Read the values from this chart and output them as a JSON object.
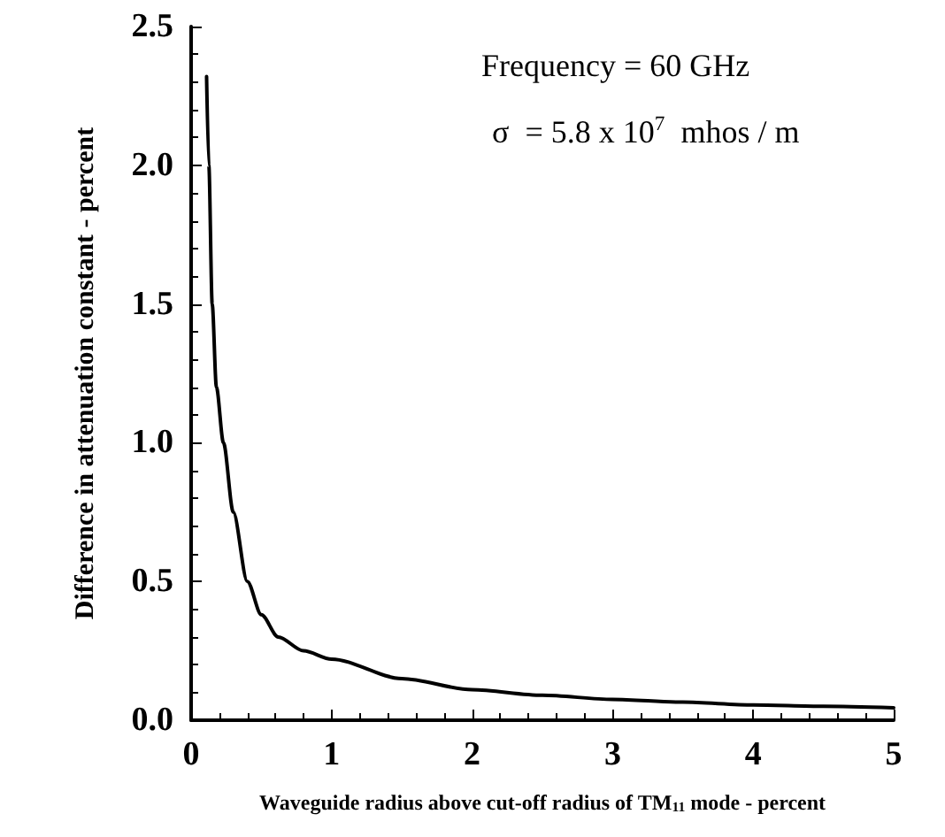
{
  "chart_data": {
    "type": "line",
    "xlabel": "Waveguide radius above cut-off radius of TM$_{11}$ mode - percent",
    "ylabel": "Difference in attenuation constant - percent",
    "annotations": [
      "Frequency = 60 GHz",
      "σ  = 5.8 x 10$^{7}$  mhos / m"
    ],
    "series": [
      {
        "color": "#000000",
        "x": [
          0.11,
          0.126,
          0.15,
          0.18,
          0.23,
          0.3,
          0.4,
          0.5,
          0.62,
          0.8,
          1,
          1.5,
          2,
          2.5,
          3,
          3.5,
          4,
          4.5,
          5
        ],
        "values": [
          2.32,
          2.0,
          1.5,
          1.2,
          1.0,
          0.75,
          0.5,
          0.38,
          0.3,
          0.25,
          0.22,
          0.15,
          0.11,
          0.09,
          0.075,
          0.065,
          0.055,
          0.05,
          0.045
        ]
      }
    ],
    "xlim": [
      0,
      5
    ],
    "xticks": [
      0,
      1,
      2,
      3,
      4,
      5
    ],
    "ylim": [
      0,
      2.5
    ],
    "yticks": [
      {
        "value": 0,
        "label": "0.0"
      },
      {
        "value": 0.5,
        "label": "0.5"
      },
      {
        "value": 1,
        "label": "1.0"
      },
      {
        "value": 1.5,
        "label": "1.5"
      },
      {
        "value": 2,
        "label": "2.0"
      },
      {
        "value": 2.5,
        "label": "2.5"
      }
    ],
    "grid": false,
    "marker": "none",
    "line_style": "solid"
  }
}
